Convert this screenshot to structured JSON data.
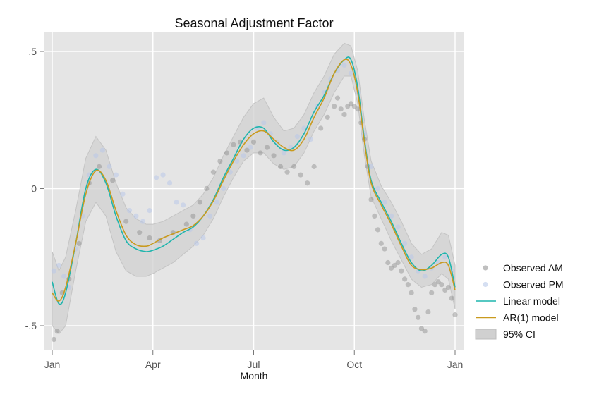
{
  "chart_data": {
    "type": "scatter",
    "title": "Seasonal Adjustment Factor",
    "xlabel": "Month",
    "ylabel": "",
    "xlim": [
      0,
      12
    ],
    "ylim": [
      -0.58,
      0.58
    ],
    "grid": true,
    "legend_position": "right",
    "x_ticks": [
      {
        "value": 0,
        "label": "Jan"
      },
      {
        "value": 3,
        "label": "Apr"
      },
      {
        "value": 6,
        "label": "Jul"
      },
      {
        "value": 9,
        "label": "Oct"
      },
      {
        "value": 12,
        "label": "Jan"
      }
    ],
    "y_ticks": [
      {
        "value": -0.5,
        "label": "-.5"
      },
      {
        "value": 0,
        "label": "0"
      },
      {
        "value": 0.5,
        "label": ".5"
      }
    ],
    "colors": {
      "plot_bg": "#e5e5e5",
      "grid": "#ffffff",
      "ci": "#d0d0d0",
      "am": "#8a8a8a",
      "pm": "#b9c9ea",
      "linear": "#1fb5ad",
      "ar1": "#c99a1e"
    },
    "series": [
      {
        "name": "Linear model",
        "kind": "line",
        "x": [
          0,
          0.2,
          0.4,
          0.7,
          1.0,
          1.3,
          1.6,
          1.9,
          2.2,
          2.5,
          2.8,
          3.0,
          3.3,
          3.6,
          3.9,
          4.2,
          4.5,
          4.8,
          5.1,
          5.4,
          5.7,
          6.0,
          6.3,
          6.6,
          6.9,
          7.2,
          7.5,
          7.8,
          8.1,
          8.4,
          8.7,
          8.9,
          9.1,
          9.3,
          9.5,
          9.8,
          10.1,
          10.4,
          10.7,
          11.0,
          11.3,
          11.6,
          11.8,
          12.0
        ],
        "y": [
          -0.34,
          -0.42,
          -0.38,
          -0.2,
          0.0,
          0.07,
          0.02,
          -0.1,
          -0.19,
          -0.22,
          -0.23,
          -0.225,
          -0.21,
          -0.185,
          -0.16,
          -0.14,
          -0.1,
          -0.04,
          0.04,
          0.11,
          0.18,
          0.22,
          0.22,
          0.17,
          0.14,
          0.15,
          0.2,
          0.28,
          0.34,
          0.42,
          0.47,
          0.47,
          0.37,
          0.18,
          0.03,
          -0.05,
          -0.12,
          -0.2,
          -0.27,
          -0.3,
          -0.28,
          -0.24,
          -0.25,
          -0.36
        ]
      },
      {
        "name": "AR(1) model",
        "kind": "line",
        "x": [
          0,
          0.2,
          0.4,
          0.7,
          1.0,
          1.3,
          1.6,
          1.9,
          2.2,
          2.5,
          2.8,
          3.0,
          3.3,
          3.6,
          3.9,
          4.2,
          4.5,
          4.8,
          5.1,
          5.4,
          5.7,
          6.0,
          6.3,
          6.6,
          6.9,
          7.2,
          7.5,
          7.8,
          8.1,
          8.4,
          8.7,
          8.9,
          9.1,
          9.3,
          9.5,
          9.8,
          10.1,
          10.4,
          10.7,
          11.0,
          11.3,
          11.6,
          11.8,
          12.0
        ],
        "y": [
          -0.38,
          -0.41,
          -0.36,
          -0.2,
          -0.02,
          0.065,
          0.03,
          -0.08,
          -0.17,
          -0.205,
          -0.21,
          -0.2,
          -0.18,
          -0.165,
          -0.15,
          -0.135,
          -0.1,
          -0.045,
          0.03,
          0.1,
          0.16,
          0.2,
          0.21,
          0.18,
          0.15,
          0.14,
          0.18,
          0.26,
          0.33,
          0.42,
          0.47,
          0.45,
          0.35,
          0.17,
          0.02,
          -0.06,
          -0.13,
          -0.21,
          -0.28,
          -0.295,
          -0.29,
          -0.27,
          -0.28,
          -0.37
        ]
      },
      {
        "name": "95% CI",
        "kind": "band",
        "x": [
          0,
          0.2,
          0.4,
          0.7,
          1.0,
          1.3,
          1.6,
          1.9,
          2.2,
          2.5,
          2.8,
          3.0,
          3.3,
          3.6,
          3.9,
          4.2,
          4.5,
          4.8,
          5.1,
          5.4,
          5.7,
          6.0,
          6.3,
          6.6,
          6.9,
          7.2,
          7.5,
          7.8,
          8.1,
          8.4,
          8.7,
          8.9,
          9.1,
          9.3,
          9.5,
          9.8,
          10.1,
          10.4,
          10.7,
          11.0,
          11.3,
          11.6,
          11.8,
          12.0
        ],
        "lower": [
          -0.5,
          -0.53,
          -0.5,
          -0.3,
          -0.12,
          -0.05,
          -0.1,
          -0.23,
          -0.3,
          -0.32,
          -0.32,
          -0.31,
          -0.29,
          -0.27,
          -0.24,
          -0.21,
          -0.17,
          -0.11,
          -0.03,
          0.04,
          0.1,
          0.13,
          0.13,
          0.09,
          0.07,
          0.08,
          0.13,
          0.21,
          0.27,
          0.35,
          0.41,
          0.41,
          0.31,
          0.12,
          -0.03,
          -0.11,
          -0.19,
          -0.26,
          -0.33,
          -0.36,
          -0.35,
          -0.31,
          -0.33,
          -0.44
        ],
        "upper": [
          -0.23,
          -0.3,
          -0.25,
          -0.08,
          0.11,
          0.19,
          0.14,
          0.02,
          -0.07,
          -0.11,
          -0.13,
          -0.13,
          -0.12,
          -0.1,
          -0.08,
          -0.06,
          -0.02,
          0.04,
          0.12,
          0.19,
          0.26,
          0.31,
          0.33,
          0.26,
          0.21,
          0.22,
          0.27,
          0.35,
          0.41,
          0.49,
          0.53,
          0.52,
          0.43,
          0.25,
          0.1,
          0.01,
          -0.05,
          -0.12,
          -0.2,
          -0.24,
          -0.22,
          -0.16,
          -0.17,
          -0.28
        ]
      },
      {
        "name": "Observed AM",
        "kind": "points",
        "x": [
          0.05,
          0.15,
          0.3,
          0.5,
          0.8,
          1.1,
          1.4,
          1.8,
          2.2,
          2.6,
          2.9,
          3.2,
          3.6,
          4.0,
          4.2,
          4.4,
          4.6,
          4.8,
          5.0,
          5.2,
          5.4,
          5.6,
          5.8,
          6.0,
          6.2,
          6.4,
          6.6,
          6.8,
          7.0,
          7.2,
          7.4,
          7.6,
          7.8,
          8.0,
          8.2,
          8.4,
          8.5,
          8.6,
          8.7,
          8.8,
          8.9,
          9.0,
          9.1,
          9.2,
          9.3,
          9.4,
          9.5,
          9.6,
          9.7,
          9.8,
          9.9,
          10.0,
          10.1,
          10.2,
          10.3,
          10.4,
          10.5,
          10.6,
          10.7,
          10.8,
          10.9,
          11.0,
          11.1,
          11.2,
          11.3,
          11.4,
          11.5,
          11.6,
          11.7,
          11.8,
          11.9,
          12.0
        ],
        "y": [
          -0.55,
          -0.52,
          -0.38,
          -0.33,
          -0.2,
          0.02,
          0.08,
          0.03,
          -0.12,
          -0.16,
          -0.18,
          -0.19,
          -0.16,
          -0.13,
          -0.1,
          -0.05,
          0.0,
          0.06,
          0.1,
          0.13,
          0.16,
          0.17,
          0.14,
          0.17,
          0.13,
          0.15,
          0.12,
          0.08,
          0.06,
          0.08,
          0.05,
          0.02,
          0.08,
          0.22,
          0.26,
          0.3,
          0.33,
          0.29,
          0.27,
          0.3,
          0.31,
          0.3,
          0.29,
          0.24,
          0.18,
          0.08,
          -0.04,
          -0.1,
          -0.15,
          -0.2,
          -0.22,
          -0.27,
          -0.29,
          -0.28,
          -0.27,
          -0.3,
          -0.33,
          -0.35,
          -0.38,
          -0.44,
          -0.47,
          -0.51,
          -0.52,
          -0.45,
          -0.38,
          -0.35,
          -0.34,
          -0.35,
          -0.37,
          -0.36,
          -0.4,
          -0.46
        ]
      },
      {
        "name": "Observed PM",
        "kind": "points",
        "x": [
          0.05,
          0.2,
          0.35,
          0.5,
          0.7,
          0.9,
          1.1,
          1.3,
          1.5,
          1.7,
          1.9,
          2.1,
          2.3,
          2.5,
          2.7,
          2.9,
          3.1,
          3.3,
          3.5,
          3.7,
          3.9,
          4.1,
          4.3,
          4.5,
          4.7,
          4.9,
          5.1,
          5.3,
          5.5,
          5.7,
          5.9,
          6.1,
          6.3,
          6.5,
          6.7,
          6.9,
          7.1,
          7.3,
          7.5,
          7.7,
          7.9,
          8.1,
          8.3,
          8.5,
          8.7,
          8.9,
          9.1,
          9.3,
          9.5,
          9.7,
          9.9,
          10.1,
          10.3,
          10.5,
          10.7,
          10.9,
          11.1,
          11.3,
          11.5,
          11.7,
          11.9
        ],
        "y": [
          -0.3,
          -0.28,
          -0.32,
          -0.36,
          -0.22,
          -0.1,
          0.05,
          0.12,
          0.14,
          0.08,
          0.05,
          -0.02,
          -0.08,
          -0.1,
          -0.12,
          -0.08,
          0.04,
          0.05,
          0.02,
          -0.05,
          -0.06,
          -0.15,
          -0.2,
          -0.18,
          -0.1,
          -0.05,
          0.0,
          0.06,
          0.1,
          0.12,
          0.15,
          0.22,
          0.24,
          0.2,
          0.17,
          0.13,
          0.15,
          0.19,
          0.22,
          0.18,
          0.3,
          0.35,
          0.4,
          0.43,
          0.45,
          0.42,
          0.35,
          0.2,
          0.08,
          0.0,
          -0.05,
          -0.1,
          -0.14,
          -0.2,
          -0.25,
          -0.3,
          -0.32,
          -0.29,
          -0.27,
          -0.25,
          -0.3
        ]
      }
    ],
    "legend": [
      {
        "label": "Observed AM",
        "symbol": "dot-am"
      },
      {
        "label": "Observed PM",
        "symbol": "dot-pm"
      },
      {
        "label": "Linear model",
        "symbol": "line-linear"
      },
      {
        "label": "AR(1) model",
        "symbol": "line-ar1"
      },
      {
        "label": "95% CI",
        "symbol": "band-ci"
      }
    ]
  }
}
